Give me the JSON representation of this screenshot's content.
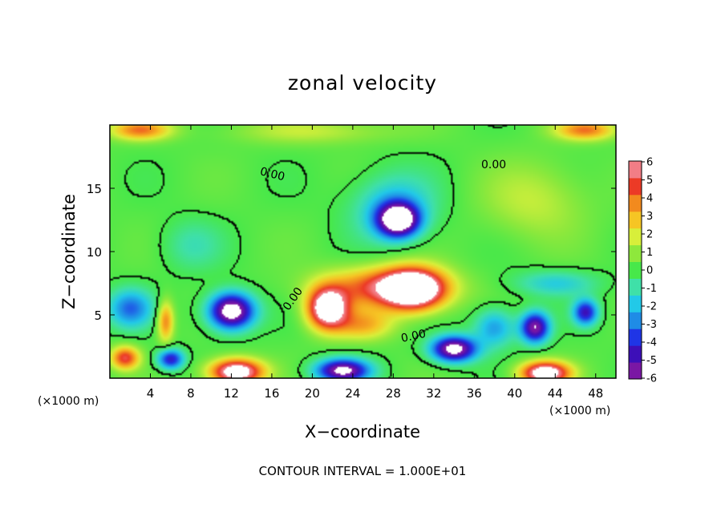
{
  "chart_data": {
    "type": "heatmap",
    "title": "zonal velocity",
    "xlabel": "X−coordinate",
    "ylabel": "Z−coordinate",
    "x_unit": "(×1000 m)",
    "y_unit": "(×1000 m)",
    "xlim": [
      0,
      50
    ],
    "ylim": [
      0,
      20
    ],
    "x_ticks": [
      4,
      8,
      12,
      16,
      20,
      24,
      28,
      32,
      36,
      40,
      44,
      48
    ],
    "y_ticks": [
      5,
      10,
      15
    ],
    "colorbar": {
      "min": -6,
      "max": 6,
      "ticks": [
        6,
        5,
        4,
        3,
        2,
        1,
        0,
        -1,
        -2,
        -3,
        -4,
        -5,
        -6
      ],
      "colors": [
        "#7a17a4",
        "#3d0fb8",
        "#1f35e6",
        "#1f8ce6",
        "#22c9e8",
        "#3fe0a8",
        "#47e84a",
        "#8ee83c",
        "#d8ef3a",
        "#f6c524",
        "#f28a1e",
        "#ec3a26",
        "#f27d86"
      ]
    },
    "contour_labels": [
      "0.00",
      "0.00",
      "0.00",
      "0.00"
    ],
    "footer": "CONTOUR INTERVAL = 1.000E+01",
    "field_features": [
      {
        "x": 30,
        "z": 7.0,
        "sx": 3.0,
        "sz": 1.6,
        "value": 8
      },
      {
        "x": 21.5,
        "z": 5.5,
        "sx": 2.0,
        "sz": 1.6,
        "value": 8
      },
      {
        "x": 27,
        "z": 7.2,
        "sx": 6.0,
        "sz": 1.6,
        "value": 4.5
      },
      {
        "x": 12,
        "z": 5.3,
        "sx": 2.2,
        "sz": 1.4,
        "value": -8
      },
      {
        "x": 28.5,
        "z": 12.5,
        "sx": 2.0,
        "sz": 1.3,
        "value": -8
      },
      {
        "x": 28,
        "z": 13.5,
        "sx": 4.0,
        "sz": 2.6,
        "value": -2.5
      },
      {
        "x": 34,
        "z": 2.3,
        "sx": 2.2,
        "sz": 1.0,
        "value": -7.5
      },
      {
        "x": 42,
        "z": 4.0,
        "sx": 1.4,
        "sz": 1.2,
        "value": -6.5
      },
      {
        "x": 47,
        "z": 5.2,
        "sx": 1.2,
        "sz": 1.0,
        "value": -5
      },
      {
        "x": 2,
        "z": 5.5,
        "sx": 2.2,
        "sz": 1.5,
        "value": -3.5
      },
      {
        "x": 6,
        "z": 1.5,
        "sx": 1.3,
        "sz": 0.8,
        "value": -5
      },
      {
        "x": 12.5,
        "z": 0.5,
        "sx": 2.6,
        "sz": 1.0,
        "value": 8
      },
      {
        "x": 23,
        "z": 0.6,
        "sx": 2.6,
        "sz": 0.9,
        "value": -7
      },
      {
        "x": 43,
        "z": 0.4,
        "sx": 2.4,
        "sz": 0.9,
        "value": 8
      },
      {
        "x": 1.5,
        "z": 1.6,
        "sx": 1.4,
        "sz": 0.9,
        "value": 5
      },
      {
        "x": 5.5,
        "z": 4.5,
        "sx": 0.8,
        "sz": 1.6,
        "value": 4
      },
      {
        "x": 25,
        "z": 4.2,
        "sx": 3.0,
        "sz": 1.2,
        "value": 3
      },
      {
        "x": 3,
        "z": 19.6,
        "sx": 3.0,
        "sz": 0.8,
        "value": 4
      },
      {
        "x": 47,
        "z": 19.6,
        "sx": 3.0,
        "sz": 0.8,
        "value": 4
      },
      {
        "x": 20,
        "z": 19.5,
        "sx": 8.0,
        "sz": 1.0,
        "value": 1.5
      },
      {
        "x": 42,
        "z": 14.0,
        "sx": 5.0,
        "sz": 3.0,
        "value": 1.5
      },
      {
        "x": 8,
        "z": 10.5,
        "sx": 3.0,
        "sz": 2.0,
        "value": -1.2
      },
      {
        "x": 44,
        "z": 7.5,
        "sx": 4.0,
        "sz": 1.0,
        "value": -2
      },
      {
        "x": 38,
        "z": 4.0,
        "sx": 2.0,
        "sz": 1.5,
        "value": -3
      }
    ]
  }
}
